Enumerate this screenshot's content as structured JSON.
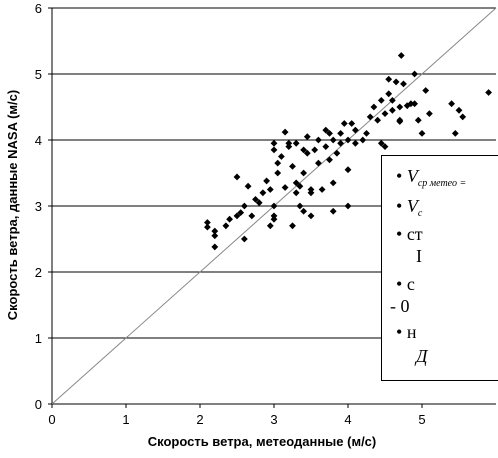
{
  "chart_data": {
    "type": "scatter",
    "xlabel": "Скорость ветра, метеоданные (м/с)",
    "ylabel": "Скорость ветра, данные  NASA (м/с)",
    "xlim": [
      0,
      6
    ],
    "ylim": [
      0,
      6
    ],
    "x_ticks": [
      "0",
      "1",
      "2",
      "3",
      "4",
      "5"
    ],
    "y_ticks": [
      "0",
      "1",
      "2",
      "3",
      "4",
      "5",
      "6"
    ],
    "grid": "horizontal",
    "reference_line": "y = x",
    "points": [
      [
        2.1,
        2.75
      ],
      [
        2.1,
        2.68
      ],
      [
        2.2,
        2.62
      ],
      [
        2.2,
        2.38
      ],
      [
        2.2,
        2.55
      ],
      [
        2.35,
        2.7
      ],
      [
        2.4,
        2.8
      ],
      [
        2.5,
        2.85
      ],
      [
        2.5,
        3.44
      ],
      [
        2.55,
        2.9
      ],
      [
        2.6,
        2.5
      ],
      [
        2.6,
        3.0
      ],
      [
        2.65,
        3.3
      ],
      [
        2.7,
        2.85
      ],
      [
        2.75,
        3.1
      ],
      [
        2.8,
        3.05
      ],
      [
        2.85,
        3.2
      ],
      [
        2.9,
        3.38
      ],
      [
        2.95,
        2.7
      ],
      [
        2.95,
        3.25
      ],
      [
        3.0,
        3.0
      ],
      [
        3.0,
        3.85
      ],
      [
        3.0,
        3.95
      ],
      [
        3.0,
        2.85
      ],
      [
        3.0,
        2.8
      ],
      [
        3.05,
        3.5
      ],
      [
        3.05,
        3.65
      ],
      [
        3.1,
        3.75
      ],
      [
        3.15,
        4.12
      ],
      [
        3.15,
        3.28
      ],
      [
        3.2,
        3.95
      ],
      [
        3.2,
        3.9
      ],
      [
        3.25,
        3.6
      ],
      [
        3.25,
        2.7
      ],
      [
        3.3,
        3.35
      ],
      [
        3.3,
        3.95
      ],
      [
        3.3,
        3.2
      ],
      [
        3.35,
        3.0
      ],
      [
        3.35,
        3.3
      ],
      [
        3.4,
        3.85
      ],
      [
        3.4,
        3.5
      ],
      [
        3.4,
        2.92
      ],
      [
        3.45,
        3.8
      ],
      [
        3.45,
        4.05
      ],
      [
        3.5,
        3.25
      ],
      [
        3.5,
        3.2
      ],
      [
        3.5,
        2.85
      ],
      [
        3.55,
        3.85
      ],
      [
        3.6,
        4.0
      ],
      [
        3.6,
        3.65
      ],
      [
        3.65,
        3.25
      ],
      [
        3.7,
        4.15
      ],
      [
        3.7,
        3.9
      ],
      [
        3.75,
        4.1
      ],
      [
        3.75,
        3.7
      ],
      [
        3.8,
        4.0
      ],
      [
        3.8,
        3.35
      ],
      [
        3.8,
        2.92
      ],
      [
        3.85,
        3.8
      ],
      [
        3.9,
        4.1
      ],
      [
        3.9,
        3.95
      ],
      [
        3.95,
        4.25
      ],
      [
        4.0,
        4.0
      ],
      [
        4.0,
        3.55
      ],
      [
        4.0,
        3.0
      ],
      [
        4.05,
        4.25
      ],
      [
        4.1,
        4.15
      ],
      [
        4.1,
        3.95
      ],
      [
        4.2,
        4.0
      ],
      [
        4.25,
        4.1
      ],
      [
        4.3,
        4.35
      ],
      [
        4.35,
        4.5
      ],
      [
        4.4,
        4.3
      ],
      [
        4.45,
        4.6
      ],
      [
        4.45,
        3.95
      ],
      [
        4.5,
        4.4
      ],
      [
        4.5,
        3.9
      ],
      [
        4.55,
        4.7
      ],
      [
        4.55,
        4.92
      ],
      [
        4.6,
        4.6
      ],
      [
        4.6,
        4.45
      ],
      [
        4.65,
        4.88
      ],
      [
        4.7,
        4.5
      ],
      [
        4.7,
        4.3
      ],
      [
        4.7,
        4.28
      ],
      [
        4.72,
        5.28
      ],
      [
        4.75,
        4.85
      ],
      [
        4.8,
        4.52
      ],
      [
        4.85,
        4.55
      ],
      [
        4.9,
        5.0
      ],
      [
        4.9,
        4.55
      ],
      [
        4.95,
        4.3
      ],
      [
        5.0,
        4.1
      ],
      [
        5.05,
        4.75
      ],
      [
        5.1,
        4.4
      ],
      [
        5.4,
        4.55
      ],
      [
        5.45,
        4.1
      ],
      [
        5.5,
        4.45
      ],
      [
        5.55,
        4.35
      ],
      [
        5.9,
        4.72
      ]
    ],
    "legend_fragments": [
      "V",
      "ср метео =",
      "V",
      "с",
      "ст",
      "I",
      "с",
      "- 0",
      "н",
      "Д"
    ]
  }
}
